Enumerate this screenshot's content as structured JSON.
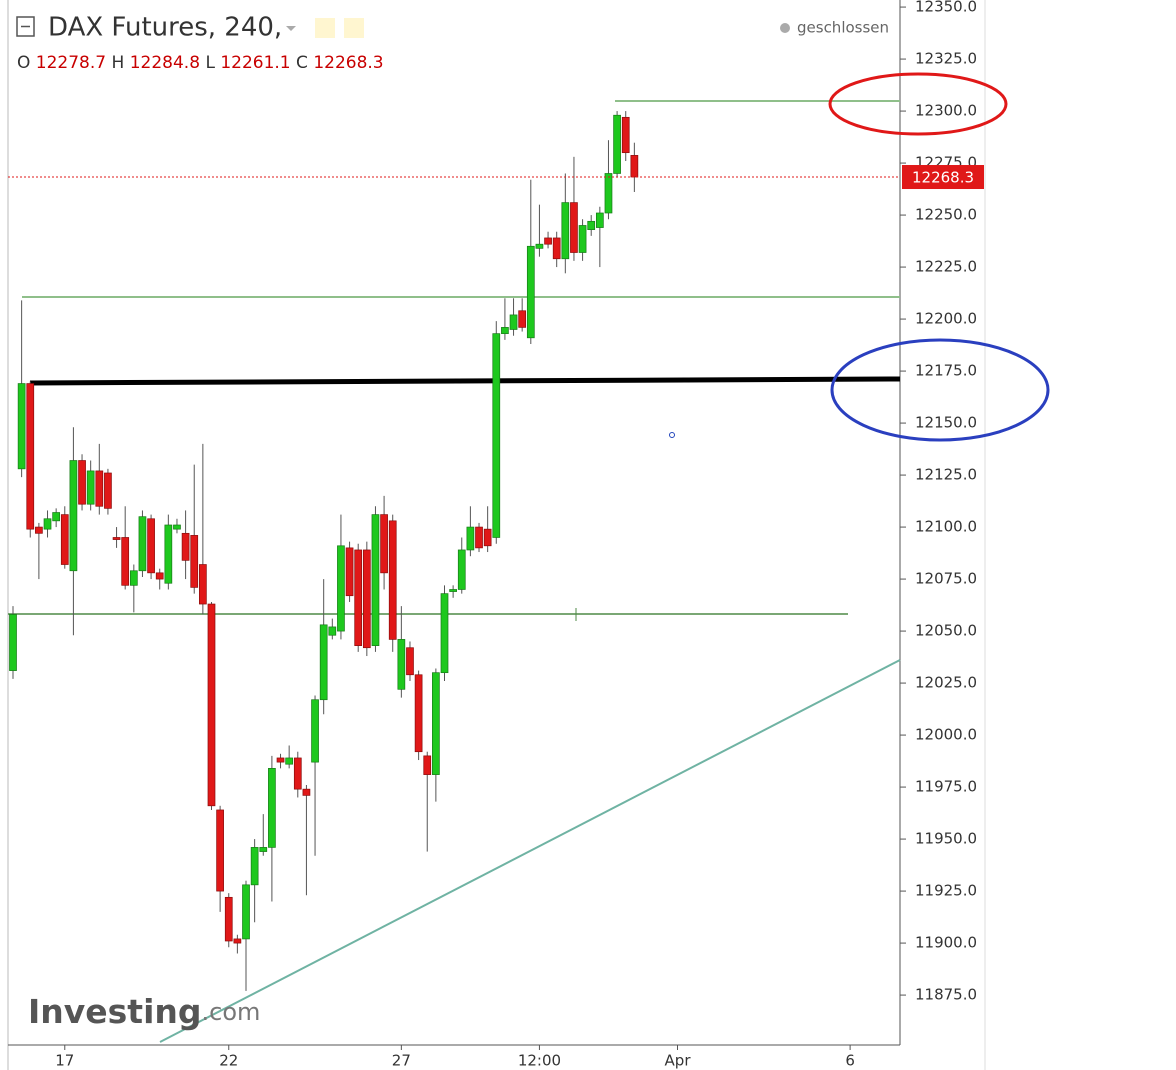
{
  "chart_data": {
    "type": "candlestick",
    "title": "DAX Futures, 240,",
    "status": "geschlossen",
    "ohlc_labels": [
      "O",
      "H",
      "L",
      "C"
    ],
    "logo": "Investing",
    "logo_suffix": ".com",
    "up_color": "#1ec81e",
    "down_color": "#e01818",
    "categories": [
      null,
      null,
      null,
      null,
      null,
      null,
      "17",
      null,
      null,
      null,
      null,
      null,
      null,
      null,
      null,
      null,
      null,
      null,
      null,
      null,
      null,
      null,
      null,
      null,
      null,
      "22",
      null,
      null,
      null,
      null,
      null,
      null,
      null,
      null,
      null,
      null,
      null,
      null,
      null,
      null,
      null,
      null,
      null,
      null,
      null,
      "27",
      null,
      null,
      null,
      null,
      null,
      null,
      null,
      null,
      null,
      null,
      null,
      null,
      null,
      null,
      null,
      "12:00",
      null,
      null,
      null,
      null,
      null,
      null,
      null,
      null,
      null,
      null,
      null,
      null,
      null,
      null,
      null,
      "Apr",
      null,
      null,
      null,
      null,
      null,
      null,
      null,
      null,
      null,
      null,
      null,
      null,
      null,
      null,
      null,
      null,
      null,
      null,
      null,
      "6",
      null,
      null,
      null,
      null,
      null
    ],
    "open": [
      12031,
      12128,
      12169,
      12100,
      12099,
      12103,
      12106,
      12079,
      12132,
      12111,
      12127,
      12126,
      12095,
      12095,
      12072,
      12079,
      12104,
      12078,
      12073,
      12099,
      12097,
      12096,
      12082,
      12063,
      11964,
      11922,
      11902,
      11902,
      11928,
      11944,
      11946,
      11989,
      11986,
      11989,
      11974,
      11987,
      12017,
      12048,
      12050,
      12090,
      12089,
      12089,
      12043,
      12106,
      12103,
      12022,
      12042,
      12029,
      11990,
      11981,
      12030,
      12069,
      12070,
      12089,
      12100,
      12099,
      12095,
      12193,
      12195,
      12204,
      12191,
      12234,
      12239,
      12239,
      12229,
      12256,
      12232,
      12243,
      12244,
      12251,
      12270,
      12297,
      12278.7,
      null,
      null,
      null,
      null,
      null,
      null,
      null,
      null,
      null,
      null,
      null,
      null,
      null,
      null,
      null,
      null,
      null,
      null,
      null,
      null,
      null,
      null,
      null,
      null,
      null,
      null,
      null,
      null,
      null,
      null
    ],
    "high": [
      12062,
      12209,
      12170,
      12102,
      12108,
      12109,
      12110,
      12148,
      12135,
      12132,
      12140,
      12128,
      12100,
      12110,
      12082,
      12108,
      12106,
      12080,
      12106,
      12104,
      12108,
      12130,
      12140,
      12064,
      11966,
      11924,
      11904,
      11930,
      11950,
      11962,
      11990,
      11991,
      11995,
      11992,
      11976,
      12019,
      12075,
      12056,
      12106,
      12093,
      12092,
      12093,
      12110,
      12115,
      12106,
      12062,
      12045,
      12031,
      11992,
      12032,
      12072,
      12072,
      12095,
      12110,
      12102,
      12110,
      12199,
      12210,
      12210,
      12210,
      12267,
      12255,
      12242,
      12242,
      12270,
      12278,
      12248,
      12250,
      12254,
      12286,
      12300,
      12300,
      12284.8,
      null,
      null,
      null,
      null,
      null,
      null,
      null,
      null,
      null,
      null,
      null,
      null,
      null,
      null,
      null,
      null,
      null,
      null,
      null,
      null,
      null,
      null,
      null,
      null,
      null,
      null,
      null,
      null,
      null,
      null
    ],
    "low": [
      12027,
      12124,
      12095,
      12075,
      12095,
      12100,
      12080,
      12048,
      12108,
      12108,
      12106,
      12106,
      12090,
      12070,
      12059,
      12076,
      12075,
      12070,
      12070,
      12097,
      12075,
      12068,
      12058,
      11964,
      11915,
      11898,
      11895,
      11877,
      11910,
      11942,
      11920,
      11984,
      11984,
      11970,
      11923,
      11942,
      12010,
      12046,
      12046,
      12064,
      12040,
      12038,
      12040,
      12070,
      12040,
      12018,
      12026,
      11988,
      11944,
      11968,
      12026,
      12066,
      12068,
      12086,
      12088,
      12088,
      12092,
      12190,
      12192,
      12194,
      12188,
      12230,
      12234,
      12225,
      12222,
      12228,
      12228,
      12240,
      12225,
      12248,
      12268,
      12276,
      12261.1,
      null,
      null,
      null,
      null,
      null,
      null,
      null,
      null,
      null,
      null,
      null,
      null,
      null,
      null,
      null,
      null,
      null,
      null,
      null,
      null,
      null,
      null,
      null,
      null,
      null,
      null,
      null,
      null,
      null,
      null
    ],
    "close": [
      12058,
      12169,
      12099,
      12097,
      12104,
      12107,
      12082,
      12132,
      12111,
      12127,
      12110,
      12109,
      12094,
      12072,
      12079,
      12105,
      12078,
      12075,
      12101,
      12101,
      12084,
      12071,
      12063,
      11966,
      11925,
      11901,
      11900,
      11928,
      11946,
      11946,
      11984,
      11987,
      11989,
      11974,
      11971,
      12017,
      12053,
      12052,
      12091,
      12067,
      12043,
      12042,
      12106,
      12078,
      12046,
      12046,
      12029,
      11992,
      11981,
      12030,
      12068,
      12070,
      12089,
      12100,
      12090,
      12091,
      12193,
      12196,
      12202,
      12196,
      12235,
      12236,
      12236,
      12229,
      12256,
      12232,
      12245,
      12247,
      12251,
      12270,
      12298,
      12280,
      12268.3,
      null,
      null,
      null,
      null,
      null,
      null,
      null,
      null,
      null,
      null,
      null,
      null,
      null,
      null,
      null,
      null,
      null,
      null,
      null,
      null,
      null,
      null,
      null,
      null,
      null,
      null,
      null,
      null,
      null,
      null
    ],
    "ylim": [
      11851,
      12353.4
    ],
    "yticks": [
      {
        "value": 12350,
        "label": "12350.0"
      },
      {
        "value": 12325,
        "label": "12325.0"
      },
      {
        "value": 12300,
        "label": "12300.0"
      },
      {
        "value": 12275,
        "label": "12275.0"
      },
      {
        "value": 12250,
        "label": "12250.0"
      },
      {
        "value": 12225,
        "label": "12225.0"
      },
      {
        "value": 12200,
        "label": "12200.0"
      },
      {
        "value": 12175,
        "label": "12175.0"
      },
      {
        "value": 12150,
        "label": "12150.0"
      },
      {
        "value": 12125,
        "label": "12125.0"
      },
      {
        "value": 12100,
        "label": "12100.0"
      },
      {
        "value": 12075,
        "label": "12075.0"
      },
      {
        "value": 12050,
        "label": "12050.0"
      },
      {
        "value": 12025,
        "label": "12025.0"
      },
      {
        "value": 12000,
        "label": "12000.0"
      },
      {
        "value": 11975,
        "label": "11975.0"
      },
      {
        "value": 11950,
        "label": "11950.0"
      },
      {
        "value": 11925,
        "label": "11925.0"
      },
      {
        "value": 11900,
        "label": "11900.0"
      },
      {
        "value": 11875,
        "label": "11875.0"
      }
    ]
  }
}
